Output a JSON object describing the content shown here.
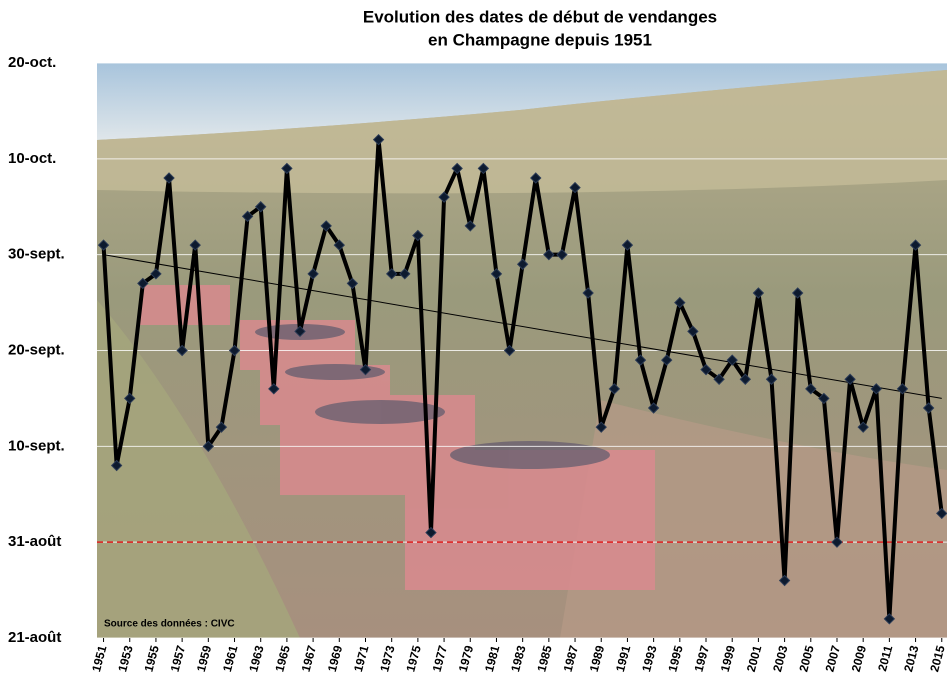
{
  "chart_data": {
    "type": "line",
    "title_lines": [
      "Evolution des dates de début de vendanges",
      "en Champagne depuis 1951"
    ],
    "annotation": "Source des données : CIVC",
    "x": [
      1951,
      1952,
      1953,
      1954,
      1955,
      1956,
      1957,
      1958,
      1959,
      1960,
      1961,
      1962,
      1963,
      1964,
      1965,
      1966,
      1967,
      1968,
      1969,
      1970,
      1971,
      1972,
      1973,
      1974,
      1975,
      1976,
      1977,
      1978,
      1979,
      1980,
      1981,
      1982,
      1983,
      1984,
      1985,
      1986,
      1987,
      1988,
      1989,
      1990,
      1991,
      1992,
      1993,
      1994,
      1995,
      1996,
      1997,
      1998,
      1999,
      2000,
      2001,
      2002,
      2003,
      2004,
      2005,
      2006,
      2007,
      2008,
      2009,
      2010,
      2011,
      2012,
      2013,
      2014,
      2015
    ],
    "series": [
      {
        "color": "#000000",
        "values": [
          274,
          251,
          258,
          270,
          271,
          281,
          263,
          274,
          253,
          255,
          263,
          277,
          278,
          259,
          282,
          265,
          271,
          276,
          274,
          270,
          261,
          285,
          271,
          271,
          275,
          244,
          279,
          282,
          276,
          282,
          271,
          263,
          272,
          281,
          273,
          273,
          280,
          269,
          255,
          259,
          274,
          262,
          257,
          262,
          268,
          265,
          261,
          260,
          262,
          260,
          269,
          260,
          239,
          269,
          259,
          258,
          243,
          260,
          255,
          259,
          235,
          259,
          274,
          257,
          246
        ]
      }
    ],
    "trendline": {
      "x": [
        1951,
        2015
      ],
      "values": [
        273,
        258
      ],
      "color": "#000000"
    },
    "reference_line": {
      "value": 243,
      "color": "#e02020"
    },
    "xlim": [
      1950.5,
      2015.4
    ],
    "xticks": [
      1951,
      1953,
      1955,
      1957,
      1959,
      1961,
      1963,
      1965,
      1967,
      1969,
      1971,
      1973,
      1975,
      1977,
      1979,
      1981,
      1983,
      1985,
      1987,
      1989,
      1991,
      1993,
      1995,
      1997,
      1999,
      2001,
      2003,
      2005,
      2007,
      2009,
      2011,
      2013,
      2015
    ],
    "ylim": [
      233,
      293
    ],
    "yticks": [
      {
        "value": 233,
        "label": "21-août"
      },
      {
        "value": 243,
        "label": "31-août"
      },
      {
        "value": 253,
        "label": "10-sept."
      },
      {
        "value": 263,
        "label": "20-sept."
      },
      {
        "value": 273,
        "label": "30-sept."
      },
      {
        "value": 283,
        "label": "10-oct."
      },
      {
        "value": 293,
        "label": "20-oct."
      }
    ],
    "grid": true
  }
}
